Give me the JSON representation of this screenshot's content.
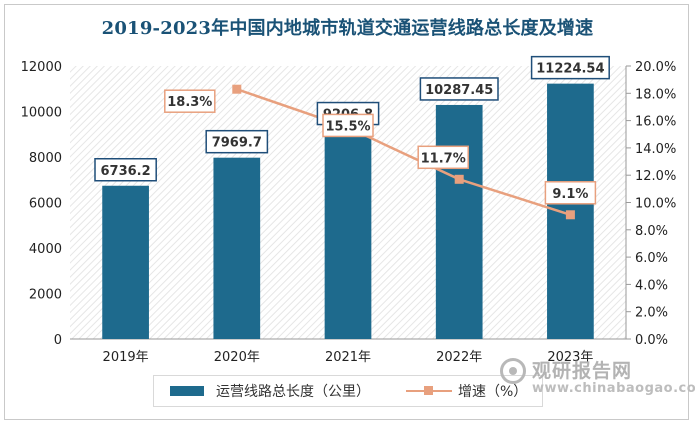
{
  "chart_data": {
    "type": "bar",
    "title": "2019-2023年中国内地城市轨道交通运营线路总长度及增速",
    "categories": [
      "2019年",
      "2020年",
      "2021年",
      "2022年",
      "2023年"
    ],
    "series": [
      {
        "name": "运营线路总长度（公里）",
        "kind": "bar",
        "axis": "left",
        "color": "#1e6a8d",
        "values": [
          6736.2,
          7969.7,
          9206.8,
          10287.45,
          11224.54
        ],
        "labels": [
          "6736.2",
          "7969.7",
          "9206.8",
          "10287.45",
          "11224.54"
        ]
      },
      {
        "name": "增速（%）",
        "kind": "line",
        "axis": "right",
        "color": "#e8a07e",
        "values": [
          null,
          18.3,
          15.5,
          11.7,
          9.1
        ],
        "labels": [
          null,
          "18.3%",
          "15.5%",
          "11.7%",
          "9.1%"
        ]
      }
    ],
    "y_left": {
      "min": 0,
      "max": 12000,
      "ticks": [
        "0",
        "2000",
        "4000",
        "6000",
        "8000",
        "10000",
        "12000"
      ]
    },
    "y_right": {
      "min": 0,
      "max": 20,
      "ticks": [
        "0.0%",
        "2.0%",
        "4.0%",
        "6.0%",
        "8.0%",
        "10.0%",
        "12.0%",
        "14.0%",
        "16.0%",
        "18.0%",
        "20.0%"
      ]
    },
    "legend_position": "bottom"
  },
  "legend": {
    "bar_label": "运营线路总长度（公里）",
    "line_label": "增速（%）"
  },
  "watermark": {
    "text": "观研报告网",
    "url": "www.chinabaogao.com"
  },
  "colors": {
    "bar": "#1e6a8d",
    "line": "#e8a07e",
    "title": "#1a5276"
  }
}
